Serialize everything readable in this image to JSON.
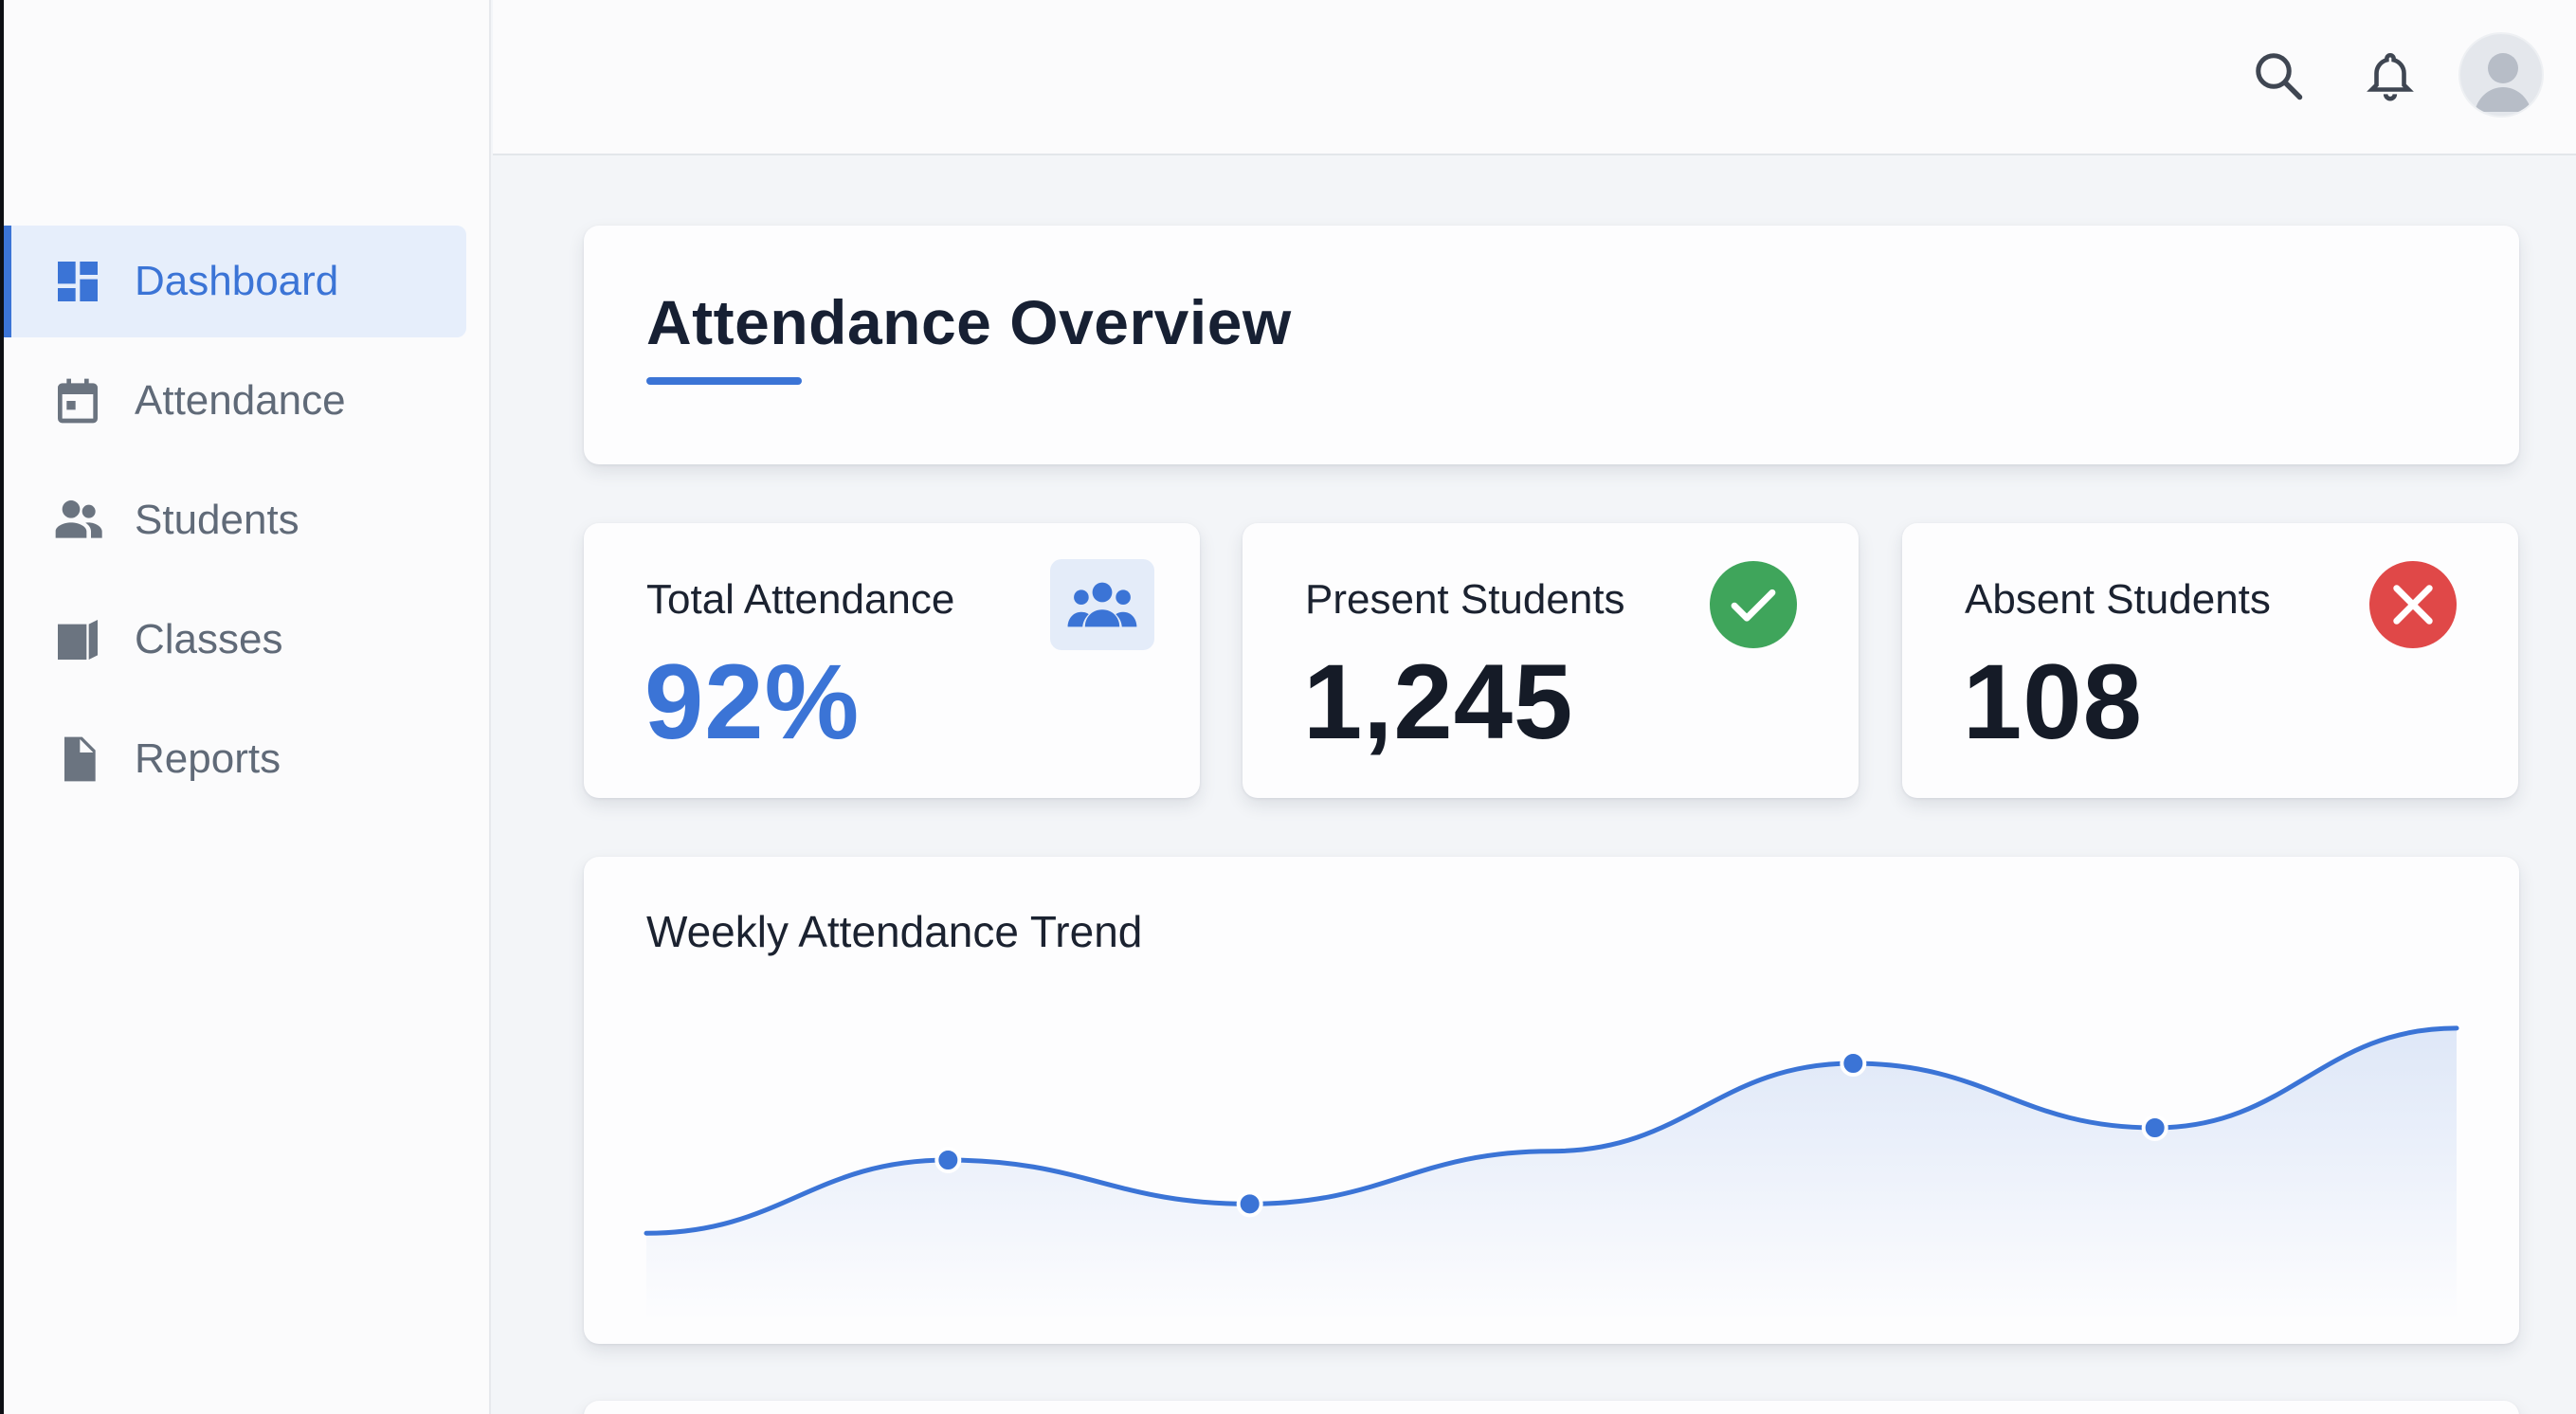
{
  "sidebar": {
    "items": [
      {
        "label": "Dashboard",
        "icon": "dashboard-icon",
        "active": true
      },
      {
        "label": "Attendance",
        "icon": "calendar-icon",
        "active": false
      },
      {
        "label": "Students",
        "icon": "people-icon",
        "active": false
      },
      {
        "label": "Classes",
        "icon": "book-icon",
        "active": false
      },
      {
        "label": "Reports",
        "icon": "document-icon",
        "active": false
      }
    ]
  },
  "topbar": {
    "icons": [
      "search-icon",
      "bell-icon",
      "user-avatar-icon"
    ]
  },
  "overview": {
    "title": "Attendance Overview"
  },
  "stats": [
    {
      "label": "Total Attendance",
      "value": "92%",
      "icon": "people-icon",
      "accent": "#3b74d6"
    },
    {
      "label": "Present Students",
      "value": "1,245",
      "icon": "check-icon",
      "accent": "#3fa55b"
    },
    {
      "label": "Absent Students",
      "value": "108",
      "icon": "close-icon",
      "accent": "#e04848"
    }
  ],
  "trend": {
    "title": "Weekly Attendance Trend"
  },
  "chart_data": {
    "type": "area",
    "title": "Weekly Attendance Trend",
    "x": [
      0,
      1,
      2,
      3,
      4,
      5,
      6
    ],
    "series": [
      {
        "values": [
          30,
          55,
          40,
          58,
          88,
          66,
          100
        ],
        "markers": [
          false,
          true,
          true,
          false,
          true,
          true,
          false
        ]
      }
    ],
    "ylim": [
      0,
      110
    ],
    "grid": false,
    "color": "#3b74d6"
  },
  "colors": {
    "accent": "#3b74d6",
    "success": "#3fa55b",
    "danger": "#e04848"
  }
}
